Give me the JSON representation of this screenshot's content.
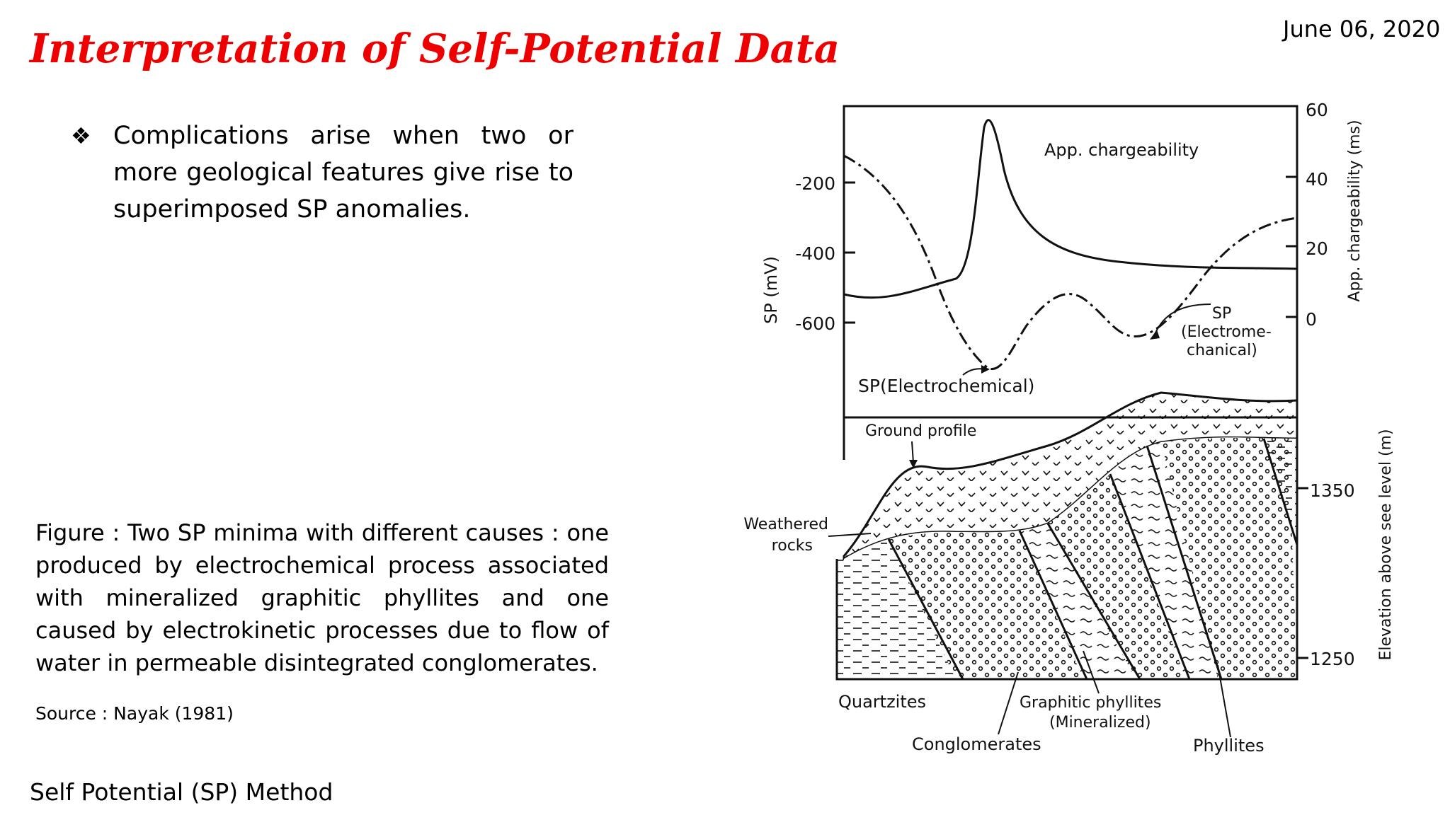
{
  "slide": {
    "date": "June 06, 2020",
    "title": "Interpretation of Self-Potential Data",
    "bullet_symbol": "❖",
    "bullet_text": "Complications arise when two or more geological features give rise to superimposed SP anomalies.",
    "caption": "Figure : Two SP minima with different causes : one produced by electrochemical process associated with mineralized graphitic phyllites and one caused by electrokinetic processes due to flow of water in permeable disintegrated conglomerates.",
    "source": "Source : Nayak  (1981)",
    "footer": "Self Potential (SP) Method"
  },
  "figure": {
    "left_axis_label": "SP (mV)",
    "left_ticks": [
      "-200",
      "-400",
      "-600"
    ],
    "right_axis_label_top": "App. chargeability (ms)",
    "right_ticks_top": [
      "60",
      "40",
      "20",
      "0"
    ],
    "right_axis_label_bottom": "Elevation above see level (m)",
    "right_ticks_bottom": [
      "1350",
      "1250"
    ],
    "labels": {
      "app_chargeability": "App. chargeability",
      "sp_electromechanical_1": "SP",
      "sp_electromechanical_2": "(Electrome-",
      "sp_electromechanical_3": "chanical)",
      "sp_electrochemical": "SP(Electrochemical)",
      "ground_profile": "Ground profile",
      "weathered_rocks_1": "Weathered",
      "weathered_rocks_2": "rocks",
      "quartzites": "Quartzites",
      "graphitic_phyllites_1": "Graphitic phyllites",
      "graphitic_phyllites_2": "(Mineralized)",
      "conglomerates": "Conglomerates",
      "phyllites": "Phyllites"
    }
  }
}
